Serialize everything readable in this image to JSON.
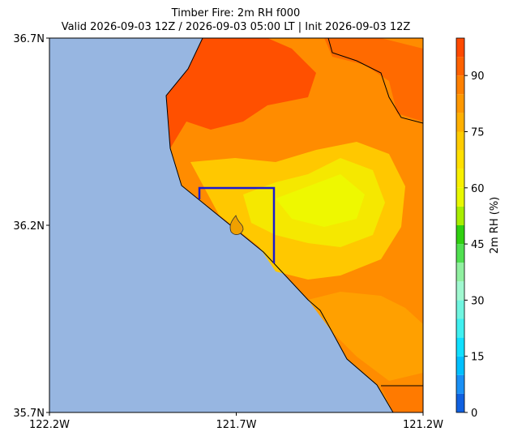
{
  "title": "Timber Fire: 2m RH f000",
  "subtitle": "Valid 2026-09-03 12Z / 2026-09-03 05:00 LT | Init 2026-09-03 12Z",
  "map": {
    "xlim": [
      -122.2,
      -121.2
    ],
    "ylim": [
      35.7,
      36.7
    ],
    "xticks": [
      {
        "value": -122.2,
        "label": "122.2W"
      },
      {
        "value": -121.7,
        "label": "121.7W"
      },
      {
        "value": -121.2,
        "label": "121.2W"
      }
    ],
    "yticks": [
      {
        "value": 35.7,
        "label": "35.7N"
      },
      {
        "value": 36.2,
        "label": "36.2N"
      },
      {
        "value": 36.7,
        "label": "36.7N"
      }
    ]
  },
  "colorbar": {
    "label": "2m RH (%)",
    "lim": [
      0,
      100
    ],
    "ticks": [
      0,
      15,
      30,
      45,
      60,
      75,
      90
    ],
    "levels": [
      0,
      5,
      10,
      15,
      20,
      25,
      30,
      35,
      40,
      45,
      50,
      55,
      60,
      65,
      70,
      75,
      80,
      85,
      90,
      95,
      100
    ],
    "colors": [
      "#1060e0",
      "#1a90f5",
      "#00c0ff",
      "#10e0ff",
      "#40f0f0",
      "#70f5e0",
      "#a0f8d0",
      "#90f0a0",
      "#50e050",
      "#30d010",
      "#a8ee00",
      "#e8f800",
      "#f8f000",
      "#ffe000",
      "#ffcc00",
      "#ffb000",
      "#ff9800",
      "#ff8000",
      "#ff6200",
      "#ff4a00"
    ]
  }
}
